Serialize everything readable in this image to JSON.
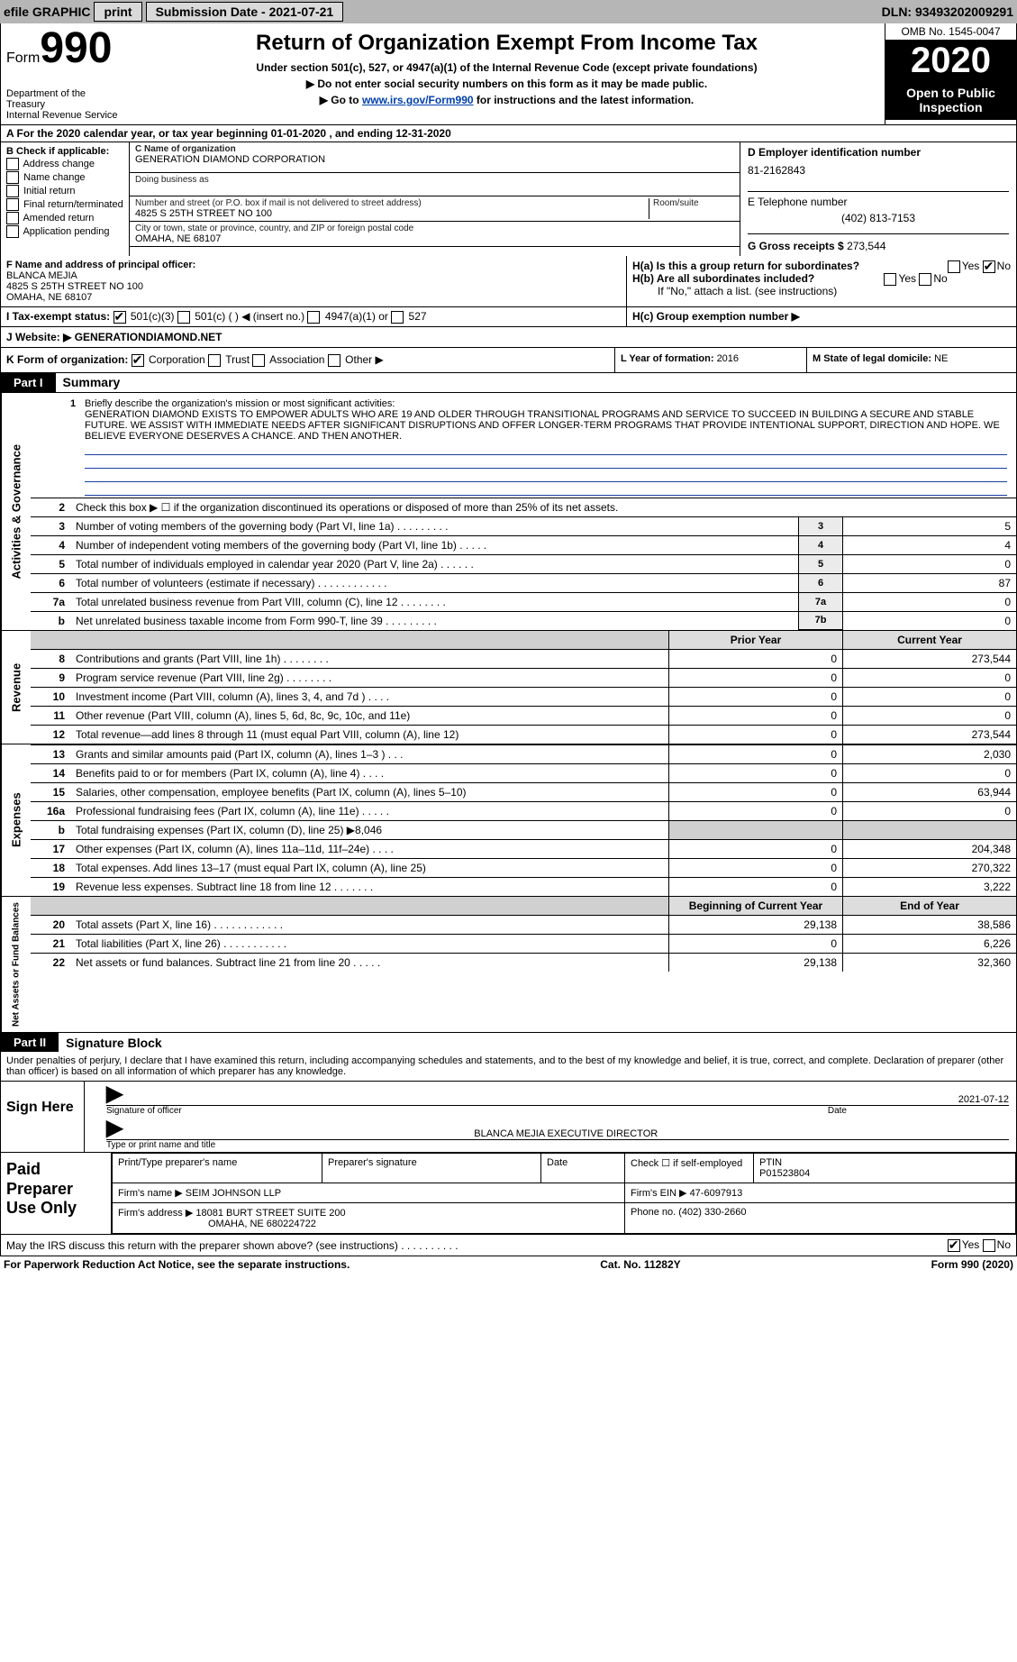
{
  "colors": {
    "bar": "#b6b6b6",
    "black": "#000000",
    "link": "#0040aa",
    "shade": "#ebebeb"
  },
  "topbar": {
    "efile": "efile GRAPHIC",
    "print": "print",
    "submission_label": "Submission Date - ",
    "submission_date": "2021-07-21",
    "dln_label": "DLN: ",
    "dln": "93493202009291"
  },
  "header": {
    "form_word": "Form",
    "form_no": "990",
    "dept": "Department of the Treasury\nInternal Revenue Service",
    "title": "Return of Organization Exempt From Income Tax",
    "sub1": "Under section 501(c), 527, or 4947(a)(1) of the Internal Revenue Code (except private foundations)",
    "sub2": "▶ Do not enter social security numbers on this form as it may be made public.",
    "sub3_pre": "▶ Go to ",
    "sub3_link": "www.irs.gov/Form990",
    "sub3_post": " for instructions and the latest information.",
    "omb": "OMB No. 1545-0047",
    "year": "2020",
    "open": "Open to Public Inspection"
  },
  "rowA": {
    "text": "A For the 2020 calendar year, or tax year beginning 01-01-2020   , and ending 12-31-2020"
  },
  "B": {
    "label": "B Check if applicable:",
    "items": [
      "Address change",
      "Name change",
      "Initial return",
      "Final return/terminated",
      "Amended return",
      "Application pending"
    ]
  },
  "C": {
    "name_label": "C Name of organization",
    "name": "GENERATION DIAMOND CORPORATION",
    "dba_label": "Doing business as",
    "addr_label": "Number and street (or P.O. box if mail is not delivered to street address)",
    "addr": "4825 S 25TH STREET NO 100",
    "room_label": "Room/suite",
    "city_label": "City or town, state or province, country, and ZIP or foreign postal code",
    "city": "OMAHA, NE  68107"
  },
  "D": {
    "label": "D Employer identification number",
    "ein": "81-2162843"
  },
  "E": {
    "label": "E Telephone number",
    "phone": "(402) 813-7153"
  },
  "G": {
    "label": "G Gross receipts $ ",
    "amount": "273,544"
  },
  "F": {
    "label": "F  Name and address of principal officer:",
    "name": "BLANCA MEJIA",
    "addr1": "4825 S 25TH STREET NO 100",
    "addr2": "OMAHA, NE  68107"
  },
  "H": {
    "a": "H(a)  Is this a group return for subordinates?",
    "a_yes": "Yes",
    "a_no": "No",
    "b": "H(b)  Are all subordinates included?",
    "b_yes": "Yes",
    "b_no": "No",
    "note": "If \"No,\" attach a list. (see instructions)",
    "c": "H(c)  Group exemption number ▶"
  },
  "I": {
    "label": "I  Tax-exempt status:",
    "opt1": "501(c)(3)",
    "opt2": "501(c) (   ) ◀ (insert no.)",
    "opt3": "4947(a)(1) or",
    "opt4": "527"
  },
  "J": {
    "label": "J  Website: ▶",
    "url": "  GENERATIONDIAMOND.NET"
  },
  "K": {
    "label": "K Form of organization:",
    "opts": [
      "Corporation",
      "Trust",
      "Association",
      "Other ▶"
    ]
  },
  "L": {
    "label": "L Year of formation: ",
    "year": "2016"
  },
  "M": {
    "label": "M State of legal domicile: ",
    "state": "NE"
  },
  "partI": {
    "tag": "Part I",
    "title": "Summary"
  },
  "mission": {
    "num": "1",
    "label": "Briefly describe the organization's mission or most significant activities:",
    "text": "GENERATION DIAMOND EXISTS TO EMPOWER ADULTS WHO ARE 19 AND OLDER THROUGH TRANSITIONAL PROGRAMS AND SERVICE TO SUCCEED IN BUILDING A SECURE AND STABLE FUTURE. WE ASSIST WITH IMMEDIATE NEEDS AFTER SIGNIFICANT DISRUPTIONS AND OFFER LONGER-TERM PROGRAMS THAT PROVIDE INTENTIONAL SUPPORT, DIRECTION AND HOPE. WE BELIEVE EVERYONE DESERVES A CHANCE. AND THEN ANOTHER."
  },
  "gov_side": "Activities & Governance",
  "rev_side": "Revenue",
  "exp_side": "Expenses",
  "net_side": "Net Assets or Fund Balances",
  "lines_gov": [
    {
      "n": "2",
      "d": "Check this box ▶ ☐  if the organization discontinued its operations or disposed of more than 25% of its net assets.",
      "box": "",
      "v": ""
    },
    {
      "n": "3",
      "d": "Number of voting members of the governing body (Part VI, line 1a)   .    .    .    .    .    .    .    .    .",
      "box": "3",
      "v": "5"
    },
    {
      "n": "4",
      "d": "Number of independent voting members of the governing body (Part VI, line 1b)    .    .    .    .    .",
      "box": "4",
      "v": "4"
    },
    {
      "n": "5",
      "d": "Total number of individuals employed in calendar year 2020 (Part V, line 2a)   .    .    .    .    .    .",
      "box": "5",
      "v": "0"
    },
    {
      "n": "6",
      "d": "Total number of volunteers (estimate if necessary)   .    .    .    .    .    .    .    .    .    .    .    .",
      "box": "6",
      "v": "87"
    },
    {
      "n": "7a",
      "d": "Total unrelated business revenue from Part VIII, column (C), line 12   .    .    .    .    .    .    .    .",
      "box": "7a",
      "v": "0"
    },
    {
      "n": "b",
      "d": "Net unrelated business taxable income from Form 990-T, line 39   .    .    .    .    .    .    .    .    .",
      "box": "7b",
      "v": "0"
    }
  ],
  "rev_header": {
    "prior": "Prior Year",
    "current": "Current Year"
  },
  "lines_rev": [
    {
      "n": "8",
      "d": "Contributions and grants (Part VIII, line 1h)   .    .    .    .    .    .    .    .",
      "p": "0",
      "c": "273,544"
    },
    {
      "n": "9",
      "d": "Program service revenue (Part VIII, line 2g)   .    .    .    .    .    .    .    .",
      "p": "0",
      "c": "0"
    },
    {
      "n": "10",
      "d": "Investment income (Part VIII, column (A), lines 3, 4, and 7d )   .    .    .    .",
      "p": "0",
      "c": "0"
    },
    {
      "n": "11",
      "d": "Other revenue (Part VIII, column (A), lines 5, 6d, 8c, 9c, 10c, and 11e)",
      "p": "0",
      "c": "0"
    },
    {
      "n": "12",
      "d": "Total revenue—add lines 8 through 11 (must equal Part VIII, column (A), line 12)",
      "p": "0",
      "c": "273,544"
    }
  ],
  "lines_exp": [
    {
      "n": "13",
      "d": "Grants and similar amounts paid (Part IX, column (A), lines 1–3 )   .    .    .",
      "p": "0",
      "c": "2,030"
    },
    {
      "n": "14",
      "d": "Benefits paid to or for members (Part IX, column (A), line 4)   .    .    .    .",
      "p": "0",
      "c": "0"
    },
    {
      "n": "15",
      "d": "Salaries, other compensation, employee benefits (Part IX, column (A), lines 5–10)",
      "p": "0",
      "c": "63,944"
    },
    {
      "n": "16a",
      "d": "Professional fundraising fees (Part IX, column (A), line 11e)   .    .    .    .    .",
      "p": "0",
      "c": "0"
    },
    {
      "n": "b",
      "d": "Total fundraising expenses (Part IX, column (D), line 25) ▶8,046",
      "p": "",
      "c": "",
      "shade": true
    },
    {
      "n": "17",
      "d": "Other expenses (Part IX, column (A), lines 11a–11d, 11f–24e)   .    .    .    .",
      "p": "0",
      "c": "204,348"
    },
    {
      "n": "18",
      "d": "Total expenses. Add lines 13–17 (must equal Part IX, column (A), line 25)",
      "p": "0",
      "c": "270,322"
    },
    {
      "n": "19",
      "d": "Revenue less expenses. Subtract line 18 from line 12   .    .    .    .    .    .    .",
      "p": "0",
      "c": "3,222"
    }
  ],
  "net_header": {
    "beg": "Beginning of Current Year",
    "end": "End of Year"
  },
  "lines_net": [
    {
      "n": "20",
      "d": "Total assets (Part X, line 16)   .    .    .    .    .    .    .    .    .    .    .    .",
      "p": "29,138",
      "c": "38,586"
    },
    {
      "n": "21",
      "d": "Total liabilities (Part X, line 26)   .    .    .    .    .    .    .    .    .    .    .",
      "p": "0",
      "c": "6,226"
    },
    {
      "n": "22",
      "d": "Net assets or fund balances. Subtract line 21 from line 20   .    .    .    .    .",
      "p": "29,138",
      "c": "32,360"
    }
  ],
  "partII": {
    "tag": "Part II",
    "title": "Signature Block"
  },
  "sig_decl": "Under penalties of perjury, I declare that I have examined this return, including accompanying schedules and statements, and to the best of my knowledge and belief, it is true, correct, and complete. Declaration of preparer (other than officer) is based on all information of which preparer has any knowledge.",
  "sign": {
    "label": "Sign Here",
    "sig_officer": "Signature of officer",
    "date": "2021-07-12",
    "date_label": "Date",
    "name": "BLANCA MEJIA  EXECUTIVE DIRECTOR",
    "name_label": "Type or print name and title"
  },
  "paid": {
    "label": "Paid Preparer Use Only",
    "h1": "Print/Type preparer's name",
    "h2": "Preparer's signature",
    "h3": "Date",
    "h4": "Check ☐ if self-employed",
    "h5_label": "PTIN",
    "h5": "P01523804",
    "firm_label": "Firm's name   ▶ ",
    "firm": "SEIM JOHNSON LLP",
    "ein_label": "Firm's EIN ▶ ",
    "ein": "47-6097913",
    "addr_label": "Firm's address ▶ ",
    "addr1": "18081 BURT STREET SUITE 200",
    "addr2": "OMAHA, NE  680224722",
    "phone_label": "Phone no. ",
    "phone": "(402) 330-2660"
  },
  "discuss": {
    "text": "May the IRS discuss this return with the preparer shown above? (see instructions)   .    .    .    .    .    .    .    .    .    .",
    "yes": "Yes",
    "no": "No"
  },
  "footer": {
    "left": "For Paperwork Reduction Act Notice, see the separate instructions.",
    "mid": "Cat. No. 11282Y",
    "right": "Form 990 (2020)"
  }
}
